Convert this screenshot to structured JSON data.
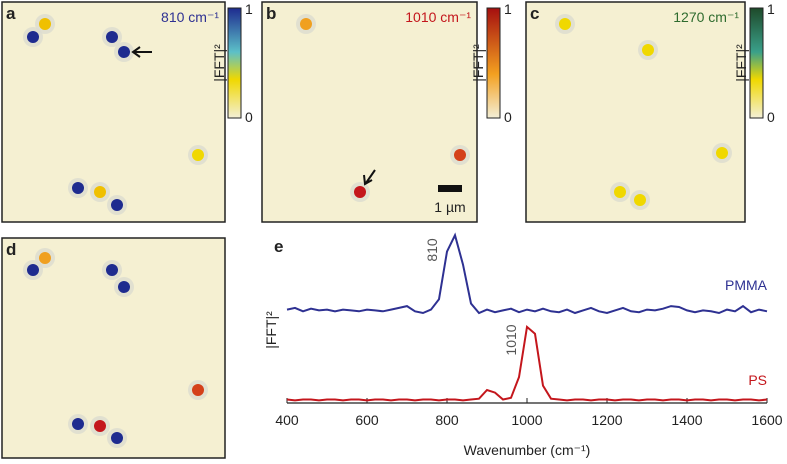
{
  "panels": [
    {
      "label": "a",
      "annotation": "810 cm⁻¹",
      "colorbar": {
        "label": "|FFT|²",
        "top": "1",
        "bottom": "0"
      }
    },
    {
      "label": "b",
      "annotation": "1010 cm⁻¹",
      "scale_bar": "1 µm",
      "colorbar": {
        "label": "|FFT|²",
        "top": "1",
        "bottom": "0"
      }
    },
    {
      "label": "c",
      "annotation": "1270 cm⁻¹",
      "colorbar": {
        "label": "|FFT|²",
        "top": "1",
        "bottom": "0"
      }
    },
    {
      "label": "d"
    }
  ],
  "chart_data": {
    "type": "line",
    "panel_label": "e",
    "ylabel": "|FFT|²",
    "xlabel": "Wavenumber (cm⁻¹)",
    "annotations": [
      "810",
      "1010"
    ],
    "xlim": [
      400,
      1600
    ],
    "xticks": [
      400,
      600,
      800,
      1000,
      1200,
      1400,
      1600
    ],
    "ylim": [
      0,
      2
    ],
    "x": [
      400,
      420,
      440,
      460,
      480,
      500,
      520,
      540,
      560,
      580,
      600,
      620,
      640,
      660,
      680,
      700,
      720,
      740,
      760,
      780,
      800,
      820,
      840,
      860,
      880,
      900,
      920,
      940,
      960,
      980,
      1000,
      1020,
      1040,
      1060,
      1080,
      1100,
      1120,
      1140,
      1160,
      1180,
      1200,
      1220,
      1240,
      1260,
      1280,
      1300,
      1320,
      1340,
      1360,
      1380,
      1400,
      1420,
      1440,
      1460,
      1480,
      1500,
      1520,
      1540,
      1560,
      1580,
      1600
    ],
    "series": [
      {
        "name": "PMMA",
        "color": "#2e3192",
        "values": [
          1.08,
          1.1,
          1.06,
          1.09,
          1.07,
          1.08,
          1.06,
          1.08,
          1.07,
          1.06,
          1.08,
          1.07,
          1.06,
          1.08,
          1.1,
          1.12,
          1.06,
          1.04,
          1.08,
          1.2,
          1.75,
          1.94,
          1.6,
          1.15,
          1.04,
          1.08,
          1.05,
          1.07,
          1.09,
          1.05,
          1.08,
          1.06,
          1.09,
          1.06,
          1.05,
          1.08,
          1.04,
          1.07,
          1.1,
          1.06,
          1.04,
          1.07,
          1.1,
          1.06,
          1.05,
          1.08,
          1.07,
          1.09,
          1.12,
          1.11,
          1.07,
          1.05,
          1.07,
          1.06,
          1.04,
          1.08,
          1.06,
          1.12,
          1.05,
          1.08,
          1.06
        ]
      },
      {
        "name": "PS",
        "color": "#c4161c",
        "values": [
          0.04,
          0.03,
          0.04,
          0.04,
          0.03,
          0.04,
          0.04,
          0.03,
          0.04,
          0.04,
          0.03,
          0.04,
          0.04,
          0.03,
          0.04,
          0.04,
          0.03,
          0.04,
          0.04,
          0.03,
          0.04,
          0.04,
          0.03,
          0.04,
          0.05,
          0.15,
          0.12,
          0.04,
          0.06,
          0.3,
          0.88,
          0.8,
          0.2,
          0.05,
          0.04,
          0.03,
          0.04,
          0.04,
          0.03,
          0.04,
          0.04,
          0.03,
          0.04,
          0.04,
          0.03,
          0.04,
          0.04,
          0.03,
          0.04,
          0.04,
          0.03,
          0.04,
          0.04,
          0.03,
          0.04,
          0.04,
          0.03,
          0.04,
          0.04,
          0.03,
          0.04
        ]
      }
    ]
  }
}
